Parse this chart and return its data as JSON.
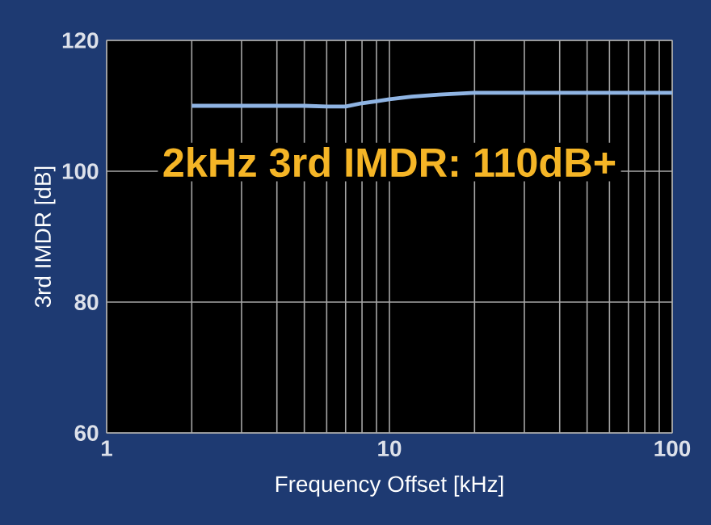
{
  "chart_data": {
    "type": "line",
    "xlabel": "Frequency Offset [kHz]",
    "ylabel": "3rd IMDR [dB]",
    "annotations": [
      "2kHz 3rd IMDR: 110dB+"
    ],
    "x": [
      2,
      3,
      4,
      5,
      6,
      7,
      8,
      9,
      10,
      12,
      15,
      20,
      30,
      50,
      70,
      100
    ],
    "series": [
      {
        "color": "#8fb4e3",
        "values": [
          110,
          110,
          110,
          110,
          109.9,
          109.9,
          110.4,
          110.7,
          111,
          111.4,
          111.7,
          112,
          112,
          112,
          112,
          112
        ]
      }
    ],
    "xlim": [
      1,
      100
    ],
    "ylim": [
      60,
      120
    ],
    "xticks": [
      1,
      10,
      100
    ],
    "yticks": [
      60,
      80,
      100,
      120
    ],
    "log": "x",
    "grid": true,
    "marker": "none",
    "line_style": "solid"
  }
}
